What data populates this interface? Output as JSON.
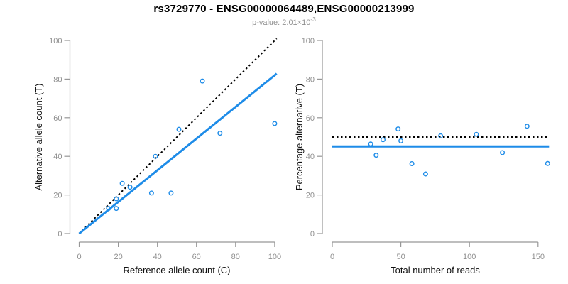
{
  "header": {
    "title": "rs3729770 - ENSG00000064489,ENSG00000213999",
    "p_value_label": "p-value: 2.01×10",
    "p_value_exponent": "-3"
  },
  "colors": {
    "accent_blue": "#1e8ce8",
    "line_black": "#000000",
    "axis_gray": "#979797",
    "tick_text_gray": "#8f8f8f"
  },
  "chart_data": [
    {
      "type": "scatter",
      "title": "",
      "xlabel": "Reference allele count (C)",
      "ylabel": "Alternative allele count (T)",
      "xlim": [
        0,
        100
      ],
      "ylim": [
        0,
        100
      ],
      "x_ticks": [
        0,
        20,
        40,
        60,
        80,
        100
      ],
      "y_ticks": [
        0,
        20,
        40,
        60,
        80,
        100
      ],
      "grid": false,
      "legend": "none",
      "points": [
        [
          15,
          13
        ],
        [
          19,
          13
        ],
        [
          19,
          18
        ],
        [
          22,
          26
        ],
        [
          26,
          24
        ],
        [
          37,
          21
        ],
        [
          47,
          21
        ],
        [
          39,
          40
        ],
        [
          51,
          54
        ],
        [
          72,
          52
        ],
        [
          63,
          79
        ],
        [
          100,
          57
        ]
      ],
      "line_span": [
        0,
        101
      ],
      "lines": [
        {
          "name": "identity-line",
          "slope": 1,
          "intercept": 0,
          "dash": "dotted",
          "color": "#000000",
          "width": 2
        },
        {
          "name": "regression-line",
          "slope": 0.82,
          "intercept": 0,
          "dash": "solid",
          "color": "#1e8ce8",
          "width": 3
        }
      ]
    },
    {
      "type": "scatter",
      "title": "",
      "xlabel": "Total number of reads",
      "ylabel": "Percentage alternative (T)",
      "xlim": [
        0,
        158
      ],
      "ylim": [
        0,
        100
      ],
      "x_ticks": [
        0,
        50,
        100,
        150
      ],
      "y_ticks": [
        0,
        20,
        40,
        60,
        80,
        100
      ],
      "grid": false,
      "legend": "none",
      "points": [
        [
          28,
          46.4
        ],
        [
          32,
          40.6
        ],
        [
          37,
          48.6
        ],
        [
          48,
          54.2
        ],
        [
          50,
          48.0
        ],
        [
          58,
          36.2
        ],
        [
          68,
          30.9
        ],
        [
          79,
          50.6
        ],
        [
          105,
          51.4
        ],
        [
          124,
          41.9
        ],
        [
          142,
          55.6
        ],
        [
          157,
          36.3
        ]
      ],
      "line_span": [
        0,
        158
      ],
      "lines": [
        {
          "name": "expected-50pct-line",
          "slope": 0,
          "intercept": 50,
          "dash": "dotted",
          "color": "#000000",
          "width": 2
        },
        {
          "name": "mean-percentage-line",
          "slope": 0,
          "intercept": 45.1,
          "dash": "solid",
          "color": "#1e8ce8",
          "width": 3
        }
      ]
    }
  ]
}
